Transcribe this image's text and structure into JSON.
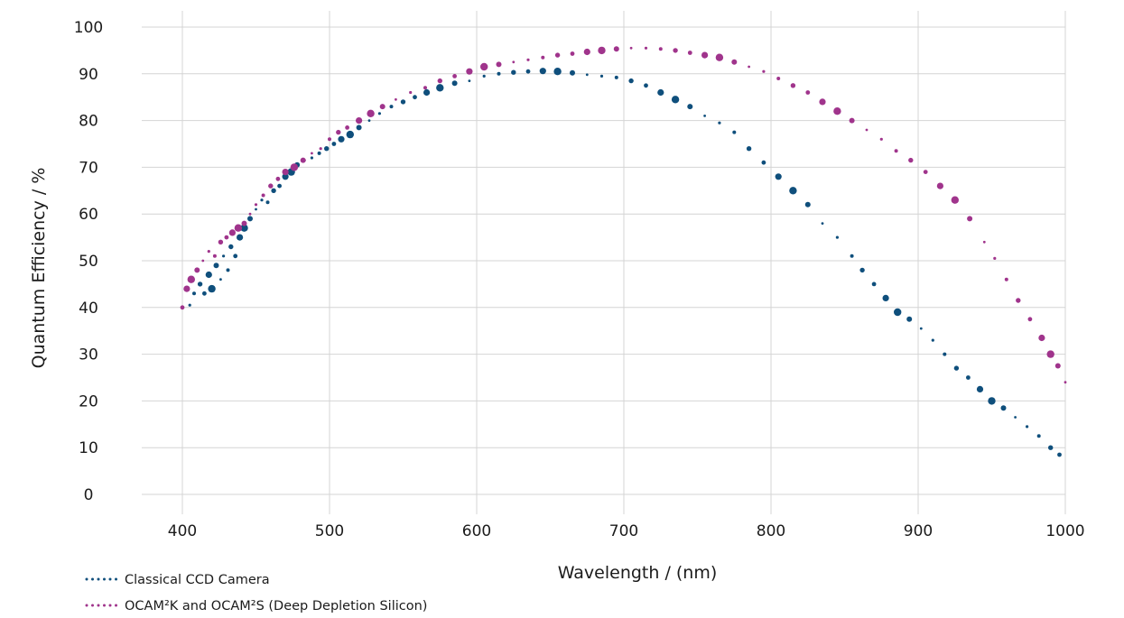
{
  "chart_data": {
    "type": "scatter",
    "title": "",
    "xlabel": "Wavelength / (nm)",
    "ylabel": "Quantum Efficiency / %",
    "xlim": [
      400,
      1000
    ],
    "ylim": [
      0,
      100
    ],
    "x_ticks": [
      400,
      500,
      600,
      700,
      800,
      900,
      1000
    ],
    "y_ticks": [
      0,
      10,
      20,
      30,
      40,
      50,
      60,
      70,
      80,
      90,
      100
    ],
    "grid": true,
    "legend_position": "bottom-left",
    "series": [
      {
        "name": "Classical CCD Camera",
        "color": "#0f4f7c",
        "points": [
          [
            405,
            40.5
          ],
          [
            408,
            43
          ],
          [
            412,
            45
          ],
          [
            415,
            43
          ],
          [
            418,
            47
          ],
          [
            420,
            44
          ],
          [
            423,
            49
          ],
          [
            426,
            46
          ],
          [
            428,
            51
          ],
          [
            431,
            48
          ],
          [
            433,
            53
          ],
          [
            436,
            51
          ],
          [
            439,
            55
          ],
          [
            442,
            57
          ],
          [
            446,
            59
          ],
          [
            450,
            61
          ],
          [
            454,
            63
          ],
          [
            458,
            62.5
          ],
          [
            462,
            65
          ],
          [
            466,
            66
          ],
          [
            470,
            68
          ],
          [
            474,
            69
          ],
          [
            478,
            70.5
          ],
          [
            483,
            71.5
          ],
          [
            488,
            72
          ],
          [
            493,
            73
          ],
          [
            498,
            74
          ],
          [
            503,
            75
          ],
          [
            508,
            76
          ],
          [
            514,
            77
          ],
          [
            520,
            78.5
          ],
          [
            527,
            80
          ],
          [
            534,
            81.5
          ],
          [
            542,
            83
          ],
          [
            550,
            84
          ],
          [
            558,
            85
          ],
          [
            566,
            86
          ],
          [
            575,
            87
          ],
          [
            585,
            88
          ],
          [
            595,
            88.5
          ],
          [
            605,
            89.5
          ],
          [
            615,
            90
          ],
          [
            625,
            90.3
          ],
          [
            635,
            90.5
          ],
          [
            645,
            90.6
          ],
          [
            655,
            90.5
          ],
          [
            665,
            90.2
          ],
          [
            675,
            89.8
          ],
          [
            685,
            89.5
          ],
          [
            695,
            89.2
          ],
          [
            705,
            88.5
          ],
          [
            715,
            87.5
          ],
          [
            725,
            86
          ],
          [
            735,
            84.5
          ],
          [
            745,
            83
          ],
          [
            755,
            81
          ],
          [
            765,
            79.5
          ],
          [
            775,
            77.5
          ],
          [
            785,
            74
          ],
          [
            795,
            71
          ],
          [
            805,
            68
          ],
          [
            815,
            65
          ],
          [
            825,
            62
          ],
          [
            835,
            58
          ],
          [
            845,
            55
          ],
          [
            855,
            51
          ],
          [
            862,
            48
          ],
          [
            870,
            45
          ],
          [
            878,
            42
          ],
          [
            886,
            39
          ],
          [
            894,
            37.5
          ],
          [
            902,
            35.5
          ],
          [
            910,
            33
          ],
          [
            918,
            30
          ],
          [
            926,
            27
          ],
          [
            934,
            25
          ],
          [
            942,
            22.5
          ],
          [
            950,
            20
          ],
          [
            958,
            18.5
          ],
          [
            966,
            16.5
          ],
          [
            974,
            14.5
          ],
          [
            982,
            12.5
          ],
          [
            990,
            10
          ],
          [
            996,
            8.5
          ]
        ]
      },
      {
        "name": "OCAM²K and OCAM²S (Deep Depletion Silicon)",
        "color": "#a0348c",
        "points": [
          [
            400,
            40
          ],
          [
            403,
            44
          ],
          [
            406,
            46
          ],
          [
            410,
            48
          ],
          [
            414,
            50
          ],
          [
            418,
            52
          ],
          [
            422,
            51
          ],
          [
            426,
            54
          ],
          [
            430,
            55
          ],
          [
            434,
            56
          ],
          [
            438,
            57
          ],
          [
            442,
            58
          ],
          [
            446,
            60
          ],
          [
            450,
            62
          ],
          [
            455,
            64
          ],
          [
            460,
            66
          ],
          [
            465,
            67.5
          ],
          [
            470,
            69
          ],
          [
            476,
            70
          ],
          [
            482,
            71.5
          ],
          [
            488,
            73
          ],
          [
            494,
            74
          ],
          [
            500,
            76
          ],
          [
            506,
            77.5
          ],
          [
            512,
            78.5
          ],
          [
            520,
            80
          ],
          [
            528,
            81.5
          ],
          [
            536,
            83
          ],
          [
            545,
            84.5
          ],
          [
            555,
            86
          ],
          [
            565,
            87
          ],
          [
            575,
            88.5
          ],
          [
            585,
            89.5
          ],
          [
            595,
            90.5
          ],
          [
            605,
            91.5
          ],
          [
            615,
            92
          ],
          [
            625,
            92.5
          ],
          [
            635,
            93
          ],
          [
            645,
            93.5
          ],
          [
            655,
            94
          ],
          [
            665,
            94.3
          ],
          [
            675,
            94.7
          ],
          [
            685,
            95
          ],
          [
            695,
            95.3
          ],
          [
            705,
            95.5
          ],
          [
            715,
            95.5
          ],
          [
            725,
            95.3
          ],
          [
            735,
            95
          ],
          [
            745,
            94.5
          ],
          [
            755,
            94
          ],
          [
            765,
            93.5
          ],
          [
            775,
            92.5
          ],
          [
            785,
            91.5
          ],
          [
            795,
            90.5
          ],
          [
            805,
            89
          ],
          [
            815,
            87.5
          ],
          [
            825,
            86
          ],
          [
            835,
            84
          ],
          [
            845,
            82
          ],
          [
            855,
            80
          ],
          [
            865,
            78
          ],
          [
            875,
            76
          ],
          [
            885,
            73.5
          ],
          [
            895,
            71.5
          ],
          [
            905,
            69
          ],
          [
            915,
            66
          ],
          [
            925,
            63
          ],
          [
            935,
            59
          ],
          [
            945,
            54
          ],
          [
            952,
            50.5
          ],
          [
            960,
            46
          ],
          [
            968,
            41.5
          ],
          [
            976,
            37.5
          ],
          [
            984,
            33.5
          ],
          [
            990,
            30
          ],
          [
            995,
            27.5
          ],
          [
            1000,
            24
          ]
        ]
      }
    ]
  }
}
